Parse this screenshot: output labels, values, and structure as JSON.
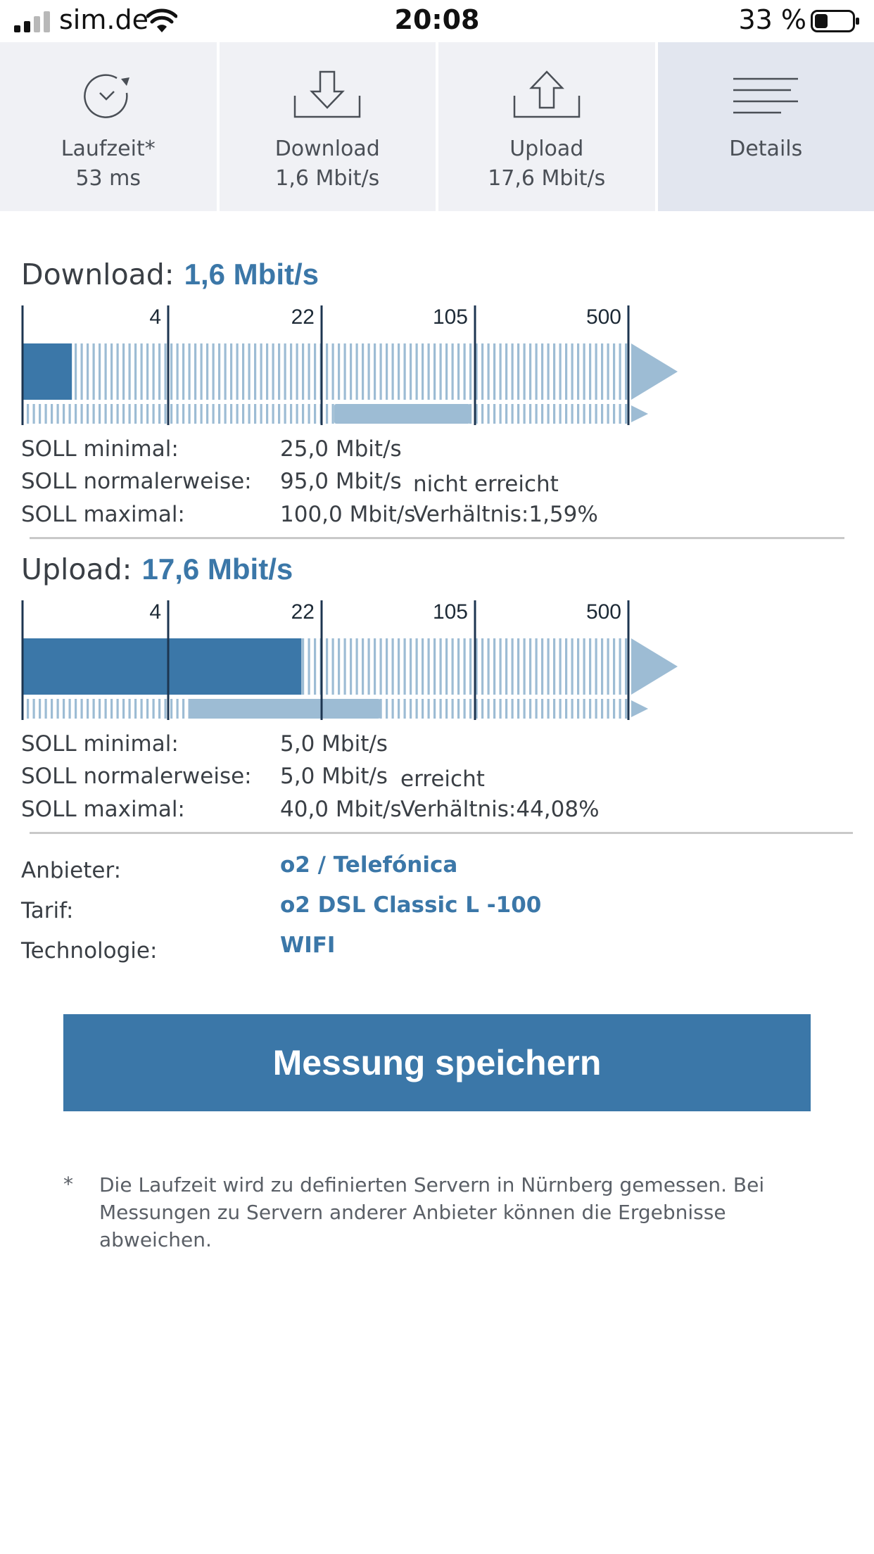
{
  "status_bar": {
    "carrier": "sim.de",
    "time": "20:08",
    "battery_percent": "33 %"
  },
  "tabs": [
    {
      "label": "Laufzeit*",
      "value": "53 ms",
      "icon": "stopwatch-icon"
    },
    {
      "label": "Download",
      "value": "1,6 Mbit/s",
      "icon": "download-icon"
    },
    {
      "label": "Upload",
      "value": "17,6 Mbit/s",
      "icon": "upload-icon"
    },
    {
      "label": "Details",
      "value": "",
      "icon": "list-icon"
    }
  ],
  "colors": {
    "accent": "#3b77a8",
    "accent_light": "#9dbcd4",
    "marker": "#1d3550"
  },
  "download": {
    "title": "Download:",
    "value": "1,6 Mbit/s",
    "measured": 1.6,
    "soll_range": [
      25,
      100
    ],
    "ticks": [
      "4",
      "22",
      "105",
      "500"
    ],
    "soll_min_label": "SOLL minimal:",
    "soll_min_value": "25,0 Mbit/s",
    "soll_norm_label": "SOLL normalerweise:",
    "soll_norm_value": "95,0 Mbit/s",
    "status": "nicht erreicht",
    "soll_max_label": "SOLL maximal:",
    "soll_max_value": "100,0 Mbit/s",
    "ratio": "Verhältnis:1,59%"
  },
  "upload": {
    "title": "Upload:",
    "value": "17,6 Mbit/s",
    "measured": 17.6,
    "soll_range": [
      5,
      40
    ],
    "ticks": [
      "4",
      "22",
      "105",
      "500"
    ],
    "soll_min_label": "SOLL minimal:",
    "soll_min_value": "5,0 Mbit/s",
    "soll_norm_label": "SOLL normalerweise:",
    "soll_norm_value": "5,0 Mbit/s",
    "status": "erreicht",
    "soll_max_label": "SOLL maximal:",
    "soll_max_value": "40,0 Mbit/s",
    "ratio": "Verhältnis:44,08%"
  },
  "info": {
    "provider_label": "Anbieter:",
    "provider_value": "o2 / Telefónica",
    "tariff_label": "Tarif:",
    "tariff_value": "o2 DSL Classic L -100",
    "technology_label": "Technologie:",
    "technology_value": "WIFI"
  },
  "save_button": "Messung speichern",
  "footnote": {
    "marker": "*",
    "text": "Die Laufzeit wird zu definierten Servern in Nürnberg gemessen. Bei Messungen zu Servern anderer Anbieter können die Ergebnisse abweichen."
  }
}
